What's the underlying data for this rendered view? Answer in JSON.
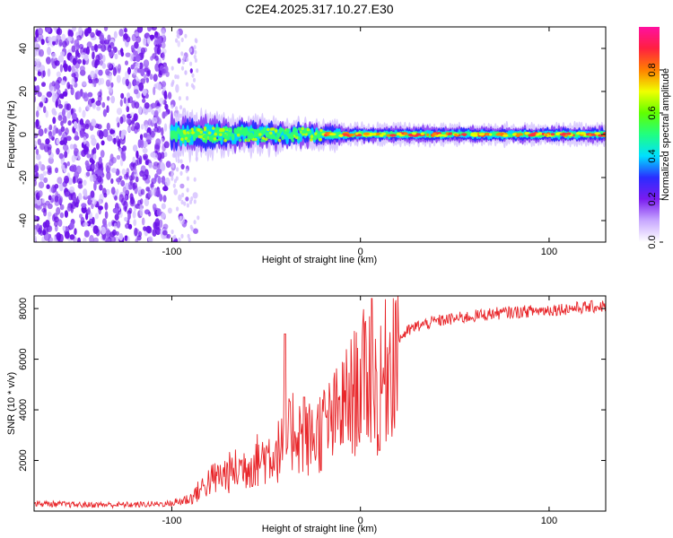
{
  "title": "C2E4.2025.317.10.27.E30",
  "colors": {
    "snr_line": "#e8262a",
    "spectrum_scatter": "#7a1cf0",
    "frame": "#000000"
  },
  "chart_data": [
    {
      "type": "heatmap",
      "xlabel": "Height of straight line (km)",
      "ylabel": "Frequency (Hz)",
      "xlim": [
        -173,
        130
      ],
      "ylim": [
        -50,
        50
      ],
      "xticks": [
        -100,
        0,
        100
      ],
      "xtick_labels": [
        "-100",
        "0",
        "100"
      ],
      "yticks": [
        -40,
        -20,
        0,
        20,
        40
      ],
      "ytick_labels": [
        "-40",
        "-20",
        "0",
        "20",
        "40"
      ],
      "noise_region_x": [
        -173,
        -95
      ],
      "signal_band_center_hz": 0,
      "colorbar": {
        "label": "Normalized spectral amplitude",
        "range": [
          0,
          1
        ],
        "ticks": [
          0.0,
          0.2,
          0.4,
          0.6,
          0.8
        ],
        "tick_labels": [
          "0.0",
          "0.2",
          "0.4",
          "0.6",
          "0.8"
        ],
        "colormap": [
          "#ffffff",
          "#c8a8ff",
          "#7a1cf0",
          "#2a2cff",
          "#00e0ff",
          "#20ff80",
          "#60ff00",
          "#f0ff00",
          "#ff8000",
          "#ff2040",
          "#ff10a0"
        ]
      }
    },
    {
      "type": "line",
      "xlabel": "Height of straight line (km)",
      "ylabel": "SNR (10 * v/v)",
      "xlim": [
        -173,
        130
      ],
      "ylim": [
        0,
        8500
      ],
      "xticks": [
        -100,
        0,
        100
      ],
      "xtick_labels": [
        "-100",
        "0",
        "100"
      ],
      "yticks": [
        2000,
        4000,
        6000,
        8000
      ],
      "ytick_labels": [
        "2000",
        "4000",
        "6000",
        "8000"
      ],
      "x": [
        -173,
        -150,
        -120,
        -100,
        -90,
        -80,
        -70,
        -60,
        -50,
        -40,
        -35,
        -30,
        -25,
        -20,
        -15,
        -10,
        -5,
        0,
        5,
        10,
        15,
        20,
        25,
        30,
        35,
        40,
        50,
        60,
        70,
        80,
        90,
        100,
        110,
        120,
        130
      ],
      "values": [
        300,
        250,
        250,
        300,
        500,
        1200,
        1500,
        1800,
        2200,
        2500,
        3400,
        2800,
        2900,
        3300,
        3500,
        4000,
        4500,
        5000,
        5500,
        4500,
        6000,
        6800,
        7100,
        7300,
        7400,
        7500,
        7600,
        7700,
        7800,
        7850,
        7900,
        7950,
        8000,
        8050,
        8100
      ],
      "peaks": [
        {
          "x": -40,
          "value": 7000
        },
        {
          "x": -30,
          "value": 4500
        },
        {
          "x": 6,
          "value": 8400
        },
        {
          "x": 10,
          "value": 2400
        }
      ]
    }
  ]
}
